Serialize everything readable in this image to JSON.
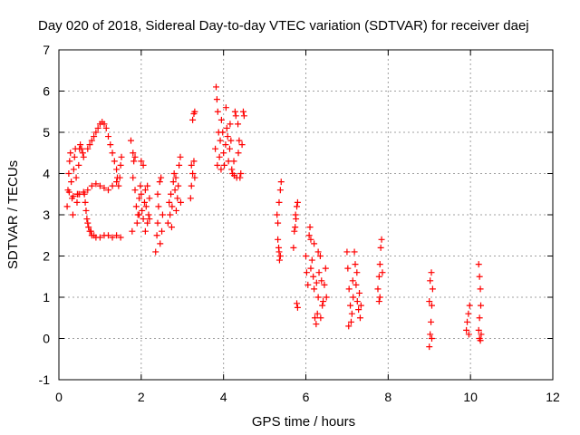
{
  "chart_data": {
    "type": "scatter",
    "title": "Day 020 of 2018, Sidereal Day-to-day VTEC variation (SDTVAR) for receiver daej",
    "xlabel": "GPS time / hours",
    "ylabel": "SDTVAR / TECUs",
    "xlim": [
      0,
      12
    ],
    "ylim": [
      -1,
      7
    ],
    "xticks": [
      "0",
      "2",
      "4",
      "6",
      "8",
      "10",
      "12"
    ],
    "yticks": [
      "-1",
      "0",
      "1",
      "2",
      "3",
      "4",
      "5",
      "6",
      "7"
    ],
    "grid": true,
    "marker": "+",
    "series_color": "#ff0000",
    "series": [
      {
        "points": [
          [
            0.2,
            3.2
          ],
          [
            0.22,
            3.6
          ],
          [
            0.24,
            4.0
          ],
          [
            0.26,
            4.3
          ],
          [
            0.28,
            4.5
          ],
          [
            0.3,
            3.8
          ],
          [
            0.32,
            3.4
          ],
          [
            0.34,
            3.0
          ],
          [
            0.36,
            4.1
          ],
          [
            0.38,
            4.4
          ],
          [
            0.4,
            4.6
          ],
          [
            0.42,
            3.9
          ],
          [
            0.44,
            3.3
          ],
          [
            0.46,
            3.5
          ],
          [
            0.48,
            4.2
          ],
          [
            0.5,
            4.6
          ],
          [
            0.52,
            4.7
          ],
          [
            0.55,
            4.6
          ],
          [
            0.58,
            4.5
          ],
          [
            0.6,
            4.4
          ],
          [
            0.62,
            3.5
          ],
          [
            0.64,
            3.3
          ],
          [
            0.66,
            3.1
          ],
          [
            0.68,
            2.9
          ],
          [
            0.7,
            2.8
          ],
          [
            0.72,
            2.7
          ],
          [
            0.75,
            2.6
          ],
          [
            0.78,
            2.6
          ],
          [
            0.8,
            2.5
          ],
          [
            0.85,
            2.5
          ],
          [
            0.7,
            4.6
          ],
          [
            0.75,
            4.7
          ],
          [
            0.8,
            4.8
          ],
          [
            0.85,
            4.9
          ],
          [
            0.9,
            5.0
          ],
          [
            0.95,
            5.1
          ],
          [
            1.0,
            5.2
          ],
          [
            1.05,
            5.25
          ],
          [
            1.1,
            5.2
          ],
          [
            1.15,
            5.1
          ],
          [
            1.2,
            4.9
          ],
          [
            1.25,
            4.7
          ],
          [
            1.3,
            4.5
          ],
          [
            1.35,
            4.3
          ],
          [
            1.4,
            4.1
          ],
          [
            1.42,
            3.9
          ],
          [
            1.45,
            3.7
          ],
          [
            1.48,
            3.9
          ],
          [
            1.5,
            4.2
          ],
          [
            1.52,
            4.4
          ],
          [
            0.5,
            3.5
          ],
          [
            0.6,
            3.55
          ],
          [
            0.7,
            3.6
          ],
          [
            0.8,
            3.7
          ],
          [
            0.9,
            3.75
          ],
          [
            1.0,
            3.7
          ],
          [
            1.1,
            3.65
          ],
          [
            1.2,
            3.6
          ],
          [
            1.3,
            3.7
          ],
          [
            1.4,
            3.8
          ],
          [
            0.9,
            2.45
          ],
          [
            1.0,
            2.45
          ],
          [
            1.1,
            2.5
          ],
          [
            1.2,
            2.5
          ],
          [
            1.3,
            2.45
          ],
          [
            1.4,
            2.5
          ],
          [
            1.5,
            2.45
          ],
          [
            0.25,
            3.55
          ],
          [
            0.35,
            3.45
          ],
          [
            0.45,
            3.5
          ],
          [
            1.75,
            4.8
          ],
          [
            1.8,
            4.5
          ],
          [
            1.82,
            4.3
          ],
          [
            1.85,
            3.6
          ],
          [
            1.88,
            3.2
          ],
          [
            1.9,
            2.8
          ],
          [
            1.92,
            3.0
          ],
          [
            1.95,
            3.4
          ],
          [
            1.98,
            3.7
          ],
          [
            2.0,
            3.5
          ],
          [
            2.02,
            3.1
          ],
          [
            2.05,
            2.9
          ],
          [
            2.08,
            3.3
          ],
          [
            2.1,
            3.6
          ],
          [
            2.12,
            3.2
          ],
          [
            2.15,
            2.8
          ],
          [
            2.18,
            3.0
          ],
          [
            2.2,
            3.4
          ],
          [
            1.78,
            2.6
          ],
          [
            1.8,
            3.9
          ],
          [
            2.0,
            4.3
          ],
          [
            2.05,
            4.2
          ],
          [
            1.95,
            3.0
          ],
          [
            2.1,
            2.6
          ],
          [
            2.2,
            2.9
          ],
          [
            1.85,
            4.4
          ],
          [
            2.15,
            3.7
          ],
          [
            2.35,
            2.1
          ],
          [
            2.38,
            2.5
          ],
          [
            2.4,
            2.8
          ],
          [
            2.42,
            3.2
          ],
          [
            2.45,
            3.8
          ],
          [
            2.48,
            3.9
          ],
          [
            2.5,
            2.6
          ],
          [
            2.52,
            3.0
          ],
          [
            2.4,
            3.5
          ],
          [
            2.46,
            2.3
          ],
          [
            2.65,
            2.8
          ],
          [
            2.7,
            3.0
          ],
          [
            2.72,
            3.5
          ],
          [
            2.75,
            3.2
          ],
          [
            2.78,
            3.8
          ],
          [
            2.8,
            4.0
          ],
          [
            2.82,
            3.6
          ],
          [
            2.85,
            3.1
          ],
          [
            2.88,
            3.4
          ],
          [
            2.9,
            3.7
          ],
          [
            2.92,
            4.2
          ],
          [
            2.95,
            4.4
          ],
          [
            2.68,
            3.3
          ],
          [
            2.74,
            2.7
          ],
          [
            2.84,
            3.9
          ],
          [
            2.96,
            3.3
          ],
          [
            3.2,
            3.4
          ],
          [
            3.22,
            3.7
          ],
          [
            3.25,
            4.0
          ],
          [
            3.28,
            4.3
          ],
          [
            3.3,
            3.9
          ],
          [
            3.25,
            5.3
          ],
          [
            3.28,
            5.45
          ],
          [
            3.3,
            5.5
          ],
          [
            3.22,
            4.2
          ],
          [
            3.8,
            4.6
          ],
          [
            3.82,
            6.1
          ],
          [
            3.84,
            5.8
          ],
          [
            3.86,
            5.5
          ],
          [
            3.88,
            5.0
          ],
          [
            3.9,
            4.4
          ],
          [
            3.92,
            4.8
          ],
          [
            3.95,
            5.3
          ],
          [
            3.98,
            5.0
          ],
          [
            4.0,
            4.5
          ],
          [
            4.02,
            4.2
          ],
          [
            4.05,
            4.7
          ],
          [
            4.08,
            5.1
          ],
          [
            4.1,
            4.9
          ],
          [
            4.12,
            4.3
          ],
          [
            4.15,
            4.6
          ],
          [
            4.18,
            4.8
          ],
          [
            4.2,
            4.1
          ],
          [
            4.22,
            4.0
          ],
          [
            4.25,
            4.3
          ],
          [
            4.28,
            5.5
          ],
          [
            4.3,
            5.4
          ],
          [
            4.35,
            5.2
          ],
          [
            4.38,
            4.8
          ],
          [
            4.4,
            3.9
          ],
          [
            4.42,
            4.0
          ],
          [
            4.45,
            4.7
          ],
          [
            4.48,
            5.5
          ],
          [
            4.5,
            5.4
          ],
          [
            4.32,
            3.9
          ],
          [
            3.85,
            4.2
          ],
          [
            3.94,
            4.1
          ],
          [
            4.06,
            5.6
          ],
          [
            4.16,
            5.2
          ],
          [
            4.26,
            3.95
          ],
          [
            4.36,
            4.5
          ],
          [
            5.3,
            3.0
          ],
          [
            5.32,
            2.8
          ],
          [
            5.35,
            3.3
          ],
          [
            5.38,
            3.6
          ],
          [
            5.4,
            3.8
          ],
          [
            5.32,
            2.4
          ],
          [
            5.35,
            2.1
          ],
          [
            5.38,
            2.0
          ],
          [
            5.36,
            1.9
          ],
          [
            5.34,
            2.2
          ],
          [
            5.7,
            2.2
          ],
          [
            5.72,
            2.6
          ],
          [
            5.75,
            3.0
          ],
          [
            5.78,
            3.2
          ],
          [
            5.8,
            3.3
          ],
          [
            5.74,
            2.7
          ],
          [
            5.76,
            2.9
          ],
          [
            5.8,
            0.75
          ],
          [
            5.78,
            0.85
          ],
          [
            6.0,
            2.0
          ],
          [
            6.02,
            1.6
          ],
          [
            6.05,
            1.3
          ],
          [
            6.08,
            2.5
          ],
          [
            6.1,
            2.7
          ],
          [
            6.12,
            2.4
          ],
          [
            6.15,
            1.9
          ],
          [
            6.18,
            1.5
          ],
          [
            6.2,
            1.2
          ],
          [
            6.22,
            0.5
          ],
          [
            6.25,
            0.35
          ],
          [
            6.28,
            0.6
          ],
          [
            6.3,
            1.0
          ],
          [
            6.32,
            1.6
          ],
          [
            6.35,
            2.0
          ],
          [
            6.38,
            1.4
          ],
          [
            6.4,
            0.8
          ],
          [
            6.42,
            0.9
          ],
          [
            6.45,
            1.3
          ],
          [
            6.48,
            1.7
          ],
          [
            6.5,
            1.0
          ],
          [
            6.2,
            2.3
          ],
          [
            6.3,
            2.1
          ],
          [
            6.12,
            1.7
          ],
          [
            6.26,
            1.35
          ],
          [
            6.36,
            0.5
          ],
          [
            7.0,
            2.1
          ],
          [
            7.02,
            1.7
          ],
          [
            7.05,
            1.2
          ],
          [
            7.08,
            0.8
          ],
          [
            7.1,
            0.4
          ],
          [
            7.12,
            0.6
          ],
          [
            7.15,
            1.0
          ],
          [
            7.18,
            2.1
          ],
          [
            7.2,
            1.8
          ],
          [
            7.22,
            1.3
          ],
          [
            7.25,
            0.9
          ],
          [
            7.28,
            0.7
          ],
          [
            7.3,
            1.1
          ],
          [
            7.32,
            0.5
          ],
          [
            7.04,
            0.3
          ],
          [
            7.14,
            1.4
          ],
          [
            7.24,
            1.6
          ],
          [
            7.34,
            0.8
          ],
          [
            7.75,
            1.2
          ],
          [
            7.78,
            1.5
          ],
          [
            7.8,
            1.8
          ],
          [
            7.82,
            2.2
          ],
          [
            7.84,
            2.4
          ],
          [
            7.8,
            1.0
          ],
          [
            7.78,
            0.9
          ],
          [
            7.86,
            1.6
          ],
          [
            9.0,
            -0.2
          ],
          [
            9.02,
            0.1
          ],
          [
            9.04,
            0.4
          ],
          [
            9.06,
            0.8
          ],
          [
            9.08,
            1.2
          ],
          [
            9.05,
            1.6
          ],
          [
            9.02,
            1.4
          ],
          [
            9.0,
            0.9
          ],
          [
            9.06,
            0.0
          ],
          [
            9.9,
            0.2
          ],
          [
            9.92,
            0.4
          ],
          [
            9.95,
            0.6
          ],
          [
            9.98,
            0.8
          ],
          [
            9.96,
            0.1
          ],
          [
            10.2,
            1.8
          ],
          [
            10.22,
            1.5
          ],
          [
            10.24,
            1.2
          ],
          [
            10.25,
            0.8
          ],
          [
            10.22,
            0.5
          ],
          [
            10.2,
            0.2
          ],
          [
            10.22,
            0.0
          ],
          [
            10.24,
            -0.05
          ],
          [
            10.26,
            0.1
          ]
        ]
      }
    ]
  }
}
